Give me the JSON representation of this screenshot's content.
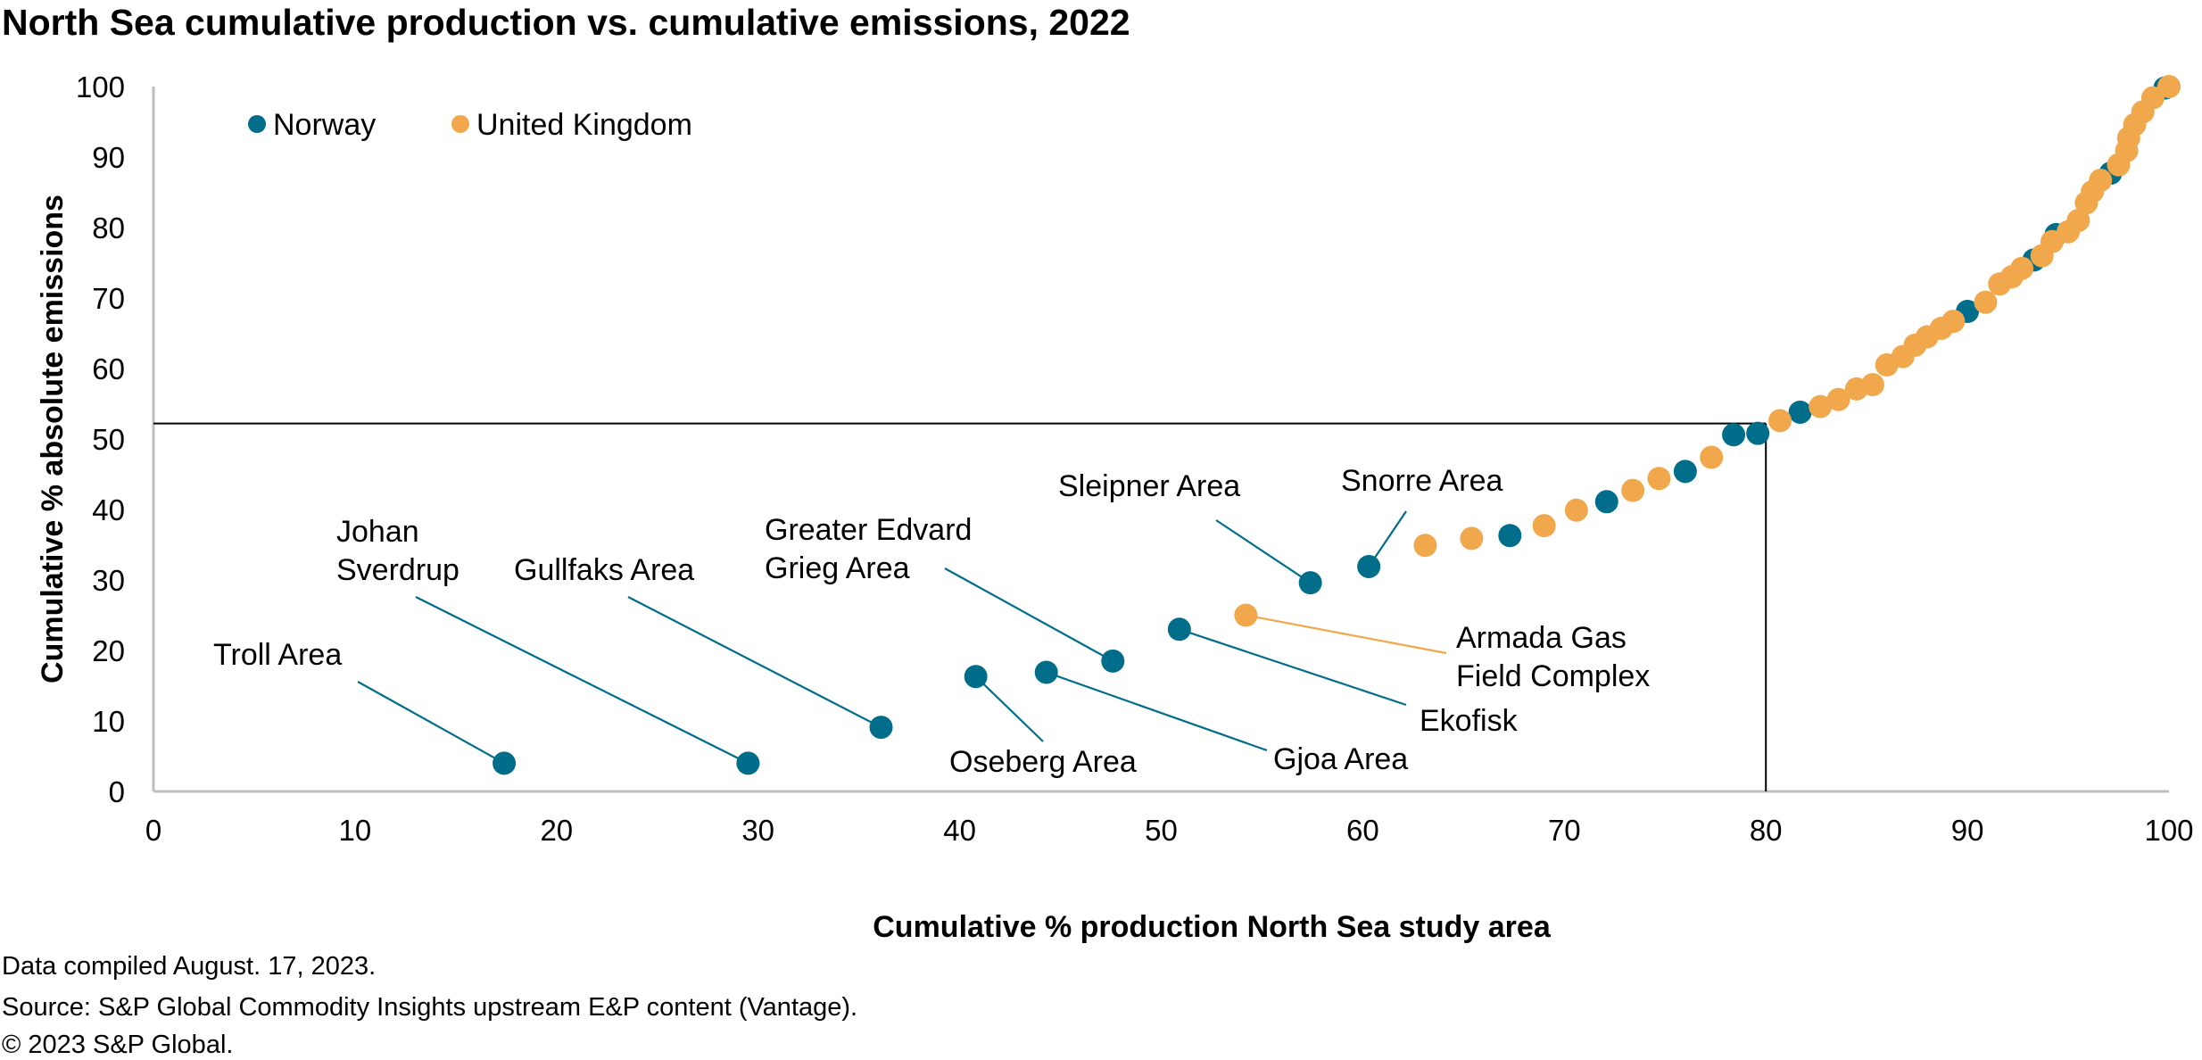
{
  "chart_data": {
    "type": "scatter",
    "title": "North Sea cumulative production vs. cumulative emissions, 2022",
    "xlabel": "Cumulative % production North Sea study area",
    "ylabel": "Cumulative % absolute emissions",
    "xlim": [
      0,
      100
    ],
    "ylim": [
      0,
      100
    ],
    "x_ticks": [
      "0",
      "10",
      "20",
      "30",
      "40",
      "50",
      "60",
      "70",
      "80",
      "90",
      "100"
    ],
    "y_ticks": [
      "0",
      "10",
      "20",
      "30",
      "40",
      "50",
      "60",
      "70",
      "80",
      "90",
      "100"
    ],
    "grid": false,
    "legend_position": "top-left",
    "reference_lines": {
      "x": 80.0,
      "y": 52.2
    },
    "series": [
      {
        "name": "Norway",
        "color": "#006E8A",
        "points": [
          [
            17.4,
            4.0
          ],
          [
            29.5,
            4.0
          ],
          [
            36.1,
            9.1
          ],
          [
            40.8,
            16.3
          ],
          [
            44.3,
            16.9
          ],
          [
            47.6,
            18.5
          ],
          [
            50.9,
            23.0
          ],
          [
            57.4,
            29.6
          ],
          [
            60.3,
            31.9
          ],
          [
            67.3,
            36.3
          ],
          [
            72.1,
            41.1
          ],
          [
            76.0,
            45.4
          ],
          [
            78.4,
            50.6
          ],
          [
            79.6,
            50.8
          ],
          [
            81.7,
            53.8
          ],
          [
            90.0,
            68.1
          ],
          [
            93.3,
            75.4
          ],
          [
            94.4,
            79.0
          ],
          [
            97.1,
            87.7
          ],
          [
            99.8,
            99.8
          ]
        ]
      },
      {
        "name": "United Kingdom",
        "color": "#F1A84C",
        "points": [
          [
            54.2,
            25.0
          ],
          [
            63.1,
            34.9
          ],
          [
            65.4,
            35.9
          ],
          [
            69.0,
            37.7
          ],
          [
            70.6,
            39.9
          ],
          [
            73.4,
            42.7
          ],
          [
            74.7,
            44.4
          ],
          [
            77.3,
            47.4
          ],
          [
            80.7,
            52.6
          ],
          [
            82.7,
            54.6
          ],
          [
            83.6,
            55.6
          ],
          [
            84.5,
            57.1
          ],
          [
            85.3,
            57.7
          ],
          [
            86.0,
            60.5
          ],
          [
            86.8,
            61.7
          ],
          [
            87.4,
            63.3
          ],
          [
            88.0,
            64.5
          ],
          [
            88.7,
            65.7
          ],
          [
            89.3,
            66.7
          ],
          [
            90.9,
            69.4
          ],
          [
            91.6,
            72.0
          ],
          [
            92.2,
            73.0
          ],
          [
            92.7,
            74.2
          ],
          [
            93.7,
            76.0
          ],
          [
            94.2,
            78.0
          ],
          [
            95.0,
            79.4
          ],
          [
            95.5,
            81.0
          ],
          [
            95.9,
            83.5
          ],
          [
            96.2,
            85.1
          ],
          [
            96.6,
            86.7
          ],
          [
            97.5,
            88.9
          ],
          [
            97.9,
            90.9
          ],
          [
            98.0,
            92.7
          ],
          [
            98.3,
            94.6
          ],
          [
            98.7,
            96.4
          ],
          [
            99.2,
            98.4
          ],
          [
            100.0,
            100.0
          ]
        ]
      }
    ],
    "annotations": [
      {
        "label": [
          "Troll Area"
        ],
        "series": "Norway",
        "point": [
          17.4,
          4.0
        ]
      },
      {
        "label": [
          "Johan",
          "Sverdrup"
        ],
        "series": "Norway",
        "point": [
          29.5,
          4.0
        ]
      },
      {
        "label": [
          "Gullfaks Area"
        ],
        "series": "Norway",
        "point": [
          36.1,
          9.1
        ]
      },
      {
        "label": [
          "Greater Edvard",
          "Grieg Area"
        ],
        "series": "Norway",
        "point": [
          47.6,
          18.5
        ]
      },
      {
        "label": [
          "Sleipner Area"
        ],
        "series": "Norway",
        "point": [
          57.4,
          29.6
        ]
      },
      {
        "label": [
          "Snorre Area"
        ],
        "series": "Norway",
        "point": [
          60.3,
          31.9
        ]
      },
      {
        "label": [
          "Armada Gas",
          "Field Complex"
        ],
        "series": "United Kingdom",
        "point": [
          54.2,
          25.0
        ]
      },
      {
        "label": [
          "Ekofisk"
        ],
        "series": "Norway",
        "point": [
          50.9,
          23.0
        ]
      },
      {
        "label": [
          "Gjoa Area"
        ],
        "series": "Norway",
        "point": [
          44.3,
          16.9
        ]
      },
      {
        "label": [
          "Oseberg Area"
        ],
        "series": "Norway",
        "point": [
          40.8,
          16.3
        ]
      }
    ]
  },
  "footer": {
    "line1": "Data compiled August. 17, 2023.",
    "line2": "Source: S&P Global Commodity Insights upstream E&P content (Vantage).",
    "line3": "© 2023 S&P Global."
  }
}
